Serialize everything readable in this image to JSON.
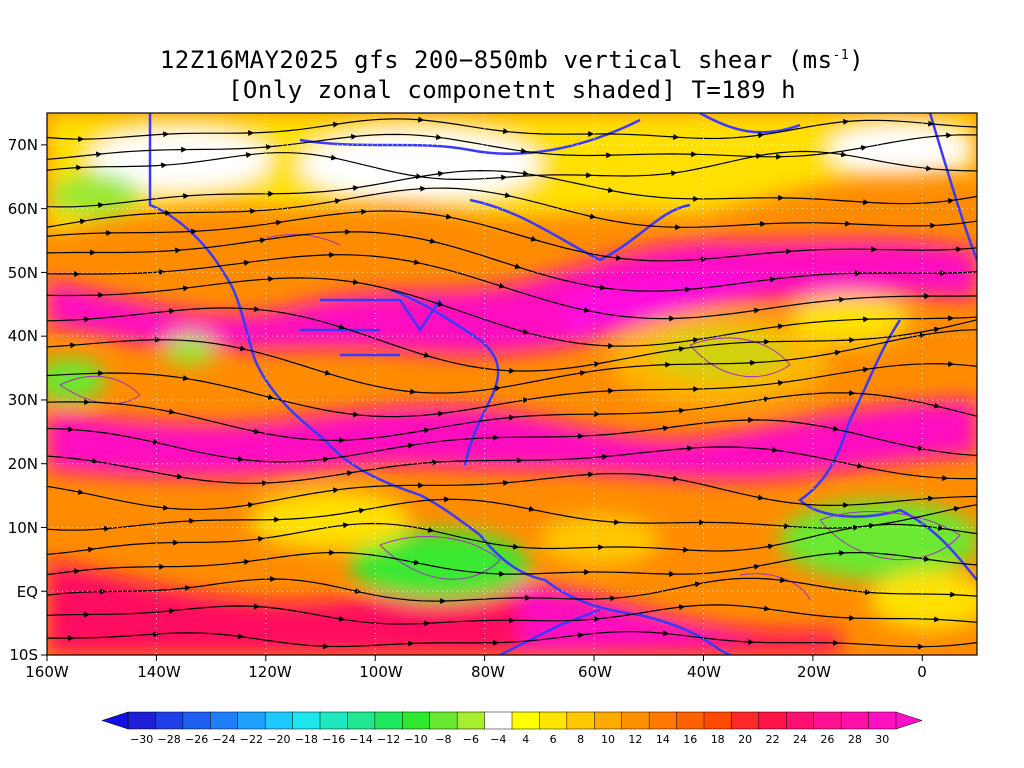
{
  "title": {
    "line1_prefix": "12Z16MAY2025 gfs 200−850mb vertical shear (ms",
    "line1_sup": "-1",
    "line1_suffix": ")",
    "line2": "[Only zonal componetnt shaded] T=189 h"
  },
  "axes": {
    "lat_labels": [
      "70N",
      "60N",
      "50N",
      "40N",
      "30N",
      "20N",
      "10N",
      "EQ",
      "10S"
    ],
    "lon_labels": [
      "160W",
      "140W",
      "120W",
      "100W",
      "80W",
      "60W",
      "40W",
      "20W",
      "0"
    ],
    "lat_range": [
      -10,
      75
    ],
    "lon_range": [
      -160,
      10
    ],
    "grid": "dotted"
  },
  "colorbar": {
    "labels": [
      "−30",
      "−28",
      "−26",
      "−24",
      "−22",
      "−20",
      "−18",
      "−16",
      "−14",
      "−12",
      "−10",
      "−8",
      "−6",
      "−4",
      "4",
      "6",
      "8",
      "10",
      "12",
      "14",
      "16",
      "18",
      "20",
      "22",
      "24",
      "26",
      "28",
      "30"
    ],
    "colors": [
      "#1f1fd6",
      "#1f3fe6",
      "#1f5ff0",
      "#1f7ff8",
      "#1fa2ff",
      "#1fc8ff",
      "#1fe6ee",
      "#1fe8c0",
      "#1fe890",
      "#1fe860",
      "#2fe830",
      "#6ae830",
      "#a8ee30",
      "#ffffff",
      "#ffff00",
      "#ffe400",
      "#ffc800",
      "#ffaa00",
      "#ff9000",
      "#ff7800",
      "#ff6000",
      "#ff4800",
      "#ff2828",
      "#ff1448",
      "#ff1070",
      "#ff1090",
      "#ff10a8",
      "#ff10c0"
    ],
    "min_arrow_color": "#1010e0",
    "max_arrow_color": "#ff10c8"
  },
  "map_colors": {
    "coastline": "#3a3aff",
    "contour": "#a030c0",
    "streamline": "#000000"
  }
}
